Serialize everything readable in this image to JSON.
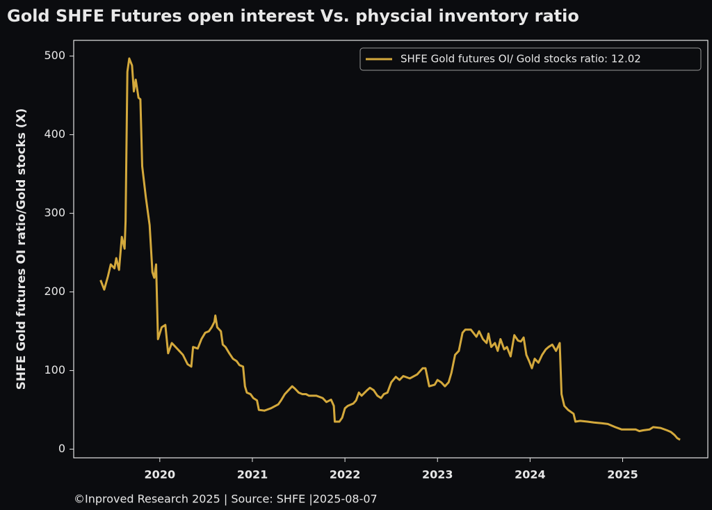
{
  "chart_data": {
    "type": "line",
    "title": "Gold SHFE Futures open interest Vs. physcial inventory ratio",
    "y_label": "SHFE Gold futures OI ratio/Gold stocks (X)",
    "footer": "©Inproved Research 2025 | Source: SHFE |2025-08-07",
    "legend_position": "upper right",
    "grid": false,
    "xlim": [
      2019.07,
      2025.92
    ],
    "xticks": [
      2020,
      2021,
      2022,
      2023,
      2024,
      2025
    ],
    "ylim": [
      -11,
      520
    ],
    "yticks": [
      0,
      100,
      200,
      300,
      400,
      500
    ],
    "x": [
      2019.36,
      2019.4,
      2019.44,
      2019.47,
      2019.51,
      2019.53,
      2019.56,
      2019.59,
      2019.62,
      2019.63,
      2019.65,
      2019.67,
      2019.7,
      2019.72,
      2019.74,
      2019.77,
      2019.79,
      2019.81,
      2019.85,
      2019.89,
      2019.92,
      2019.94,
      2019.96,
      2019.98,
      2020.02,
      2020.06,
      2020.09,
      2020.13,
      2020.17,
      2020.21,
      2020.25,
      2020.3,
      2020.34,
      2020.36,
      2020.41,
      2020.45,
      2020.49,
      2020.53,
      2020.56,
      2020.59,
      2020.6,
      2020.62,
      2020.66,
      2020.68,
      2020.71,
      2020.75,
      2020.79,
      2020.83,
      2020.86,
      2020.9,
      2020.92,
      2020.94,
      2020.98,
      2021.01,
      2021.05,
      2021.07,
      2021.13,
      2021.2,
      2021.28,
      2021.31,
      2021.35,
      2021.39,
      2021.43,
      2021.46,
      2021.5,
      2021.54,
      2021.58,
      2021.61,
      2021.69,
      2021.76,
      2021.8,
      2021.85,
      2021.88,
      2021.89,
      2021.94,
      2021.97,
      2022.0,
      2022.03,
      2022.09,
      2022.12,
      2022.15,
      2022.18,
      2022.24,
      2022.27,
      2022.31,
      2022.35,
      2022.39,
      2022.42,
      2022.46,
      2022.5,
      2022.55,
      2022.59,
      2022.63,
      2022.7,
      2022.78,
      2022.84,
      2022.87,
      2022.91,
      2022.97,
      2023.0,
      2023.04,
      2023.08,
      2023.12,
      2023.15,
      2023.19,
      2023.23,
      2023.27,
      2023.3,
      2023.36,
      2023.42,
      2023.45,
      2023.49,
      2023.53,
      2023.55,
      2023.58,
      2023.62,
      2023.65,
      2023.68,
      2023.72,
      2023.75,
      2023.79,
      2023.83,
      2023.87,
      2023.9,
      2023.93,
      2023.96,
      2023.99,
      2024.02,
      2024.05,
      2024.09,
      2024.13,
      2024.17,
      2024.2,
      2024.24,
      2024.28,
      2024.32,
      2024.34,
      2024.37,
      2024.41,
      2024.47,
      2024.49,
      2024.54,
      2024.62,
      2024.69,
      2024.77,
      2024.84,
      2024.92,
      2024.99,
      2025.07,
      2025.14,
      2025.18,
      2025.22,
      2025.29,
      2025.33,
      2025.41,
      2025.48,
      2025.52,
      2025.56,
      2025.59,
      2025.62
    ],
    "series": [
      {
        "name": "SHFE Gold futures OI/ Gold stocks ratio: 12.02",
        "color": "#d4a93c",
        "values": [
          215,
          203,
          220,
          235,
          230,
          243,
          228,
          270,
          255,
          290,
          480,
          497,
          488,
          455,
          470,
          447,
          445,
          360,
          320,
          285,
          225,
          218,
          235,
          140,
          155,
          158,
          122,
          135,
          130,
          125,
          120,
          108,
          105,
          130,
          128,
          140,
          148,
          150,
          155,
          162,
          170,
          155,
          150,
          133,
          130,
          122,
          115,
          112,
          107,
          105,
          80,
          72,
          70,
          65,
          62,
          50,
          49,
          52,
          57,
          62,
          70,
          75,
          80,
          77,
          72,
          70,
          70,
          68,
          68,
          65,
          60,
          63,
          55,
          35,
          35,
          40,
          52,
          55,
          58,
          62,
          72,
          68,
          75,
          78,
          75,
          68,
          65,
          70,
          72,
          85,
          92,
          88,
          93,
          90,
          95,
          103,
          103,
          80,
          82,
          88,
          85,
          80,
          85,
          97,
          120,
          125,
          148,
          152,
          152,
          143,
          150,
          140,
          135,
          147,
          130,
          135,
          125,
          140,
          127,
          130,
          118,
          145,
          138,
          137,
          142,
          120,
          112,
          103,
          115,
          110,
          120,
          127,
          130,
          133,
          125,
          135,
          70,
          55,
          50,
          45,
          35,
          36,
          35,
          34,
          33,
          32,
          28,
          25,
          25,
          25,
          23,
          24,
          25,
          28,
          27,
          24,
          22,
          18,
          14,
          12.02
        ]
      }
    ]
  }
}
